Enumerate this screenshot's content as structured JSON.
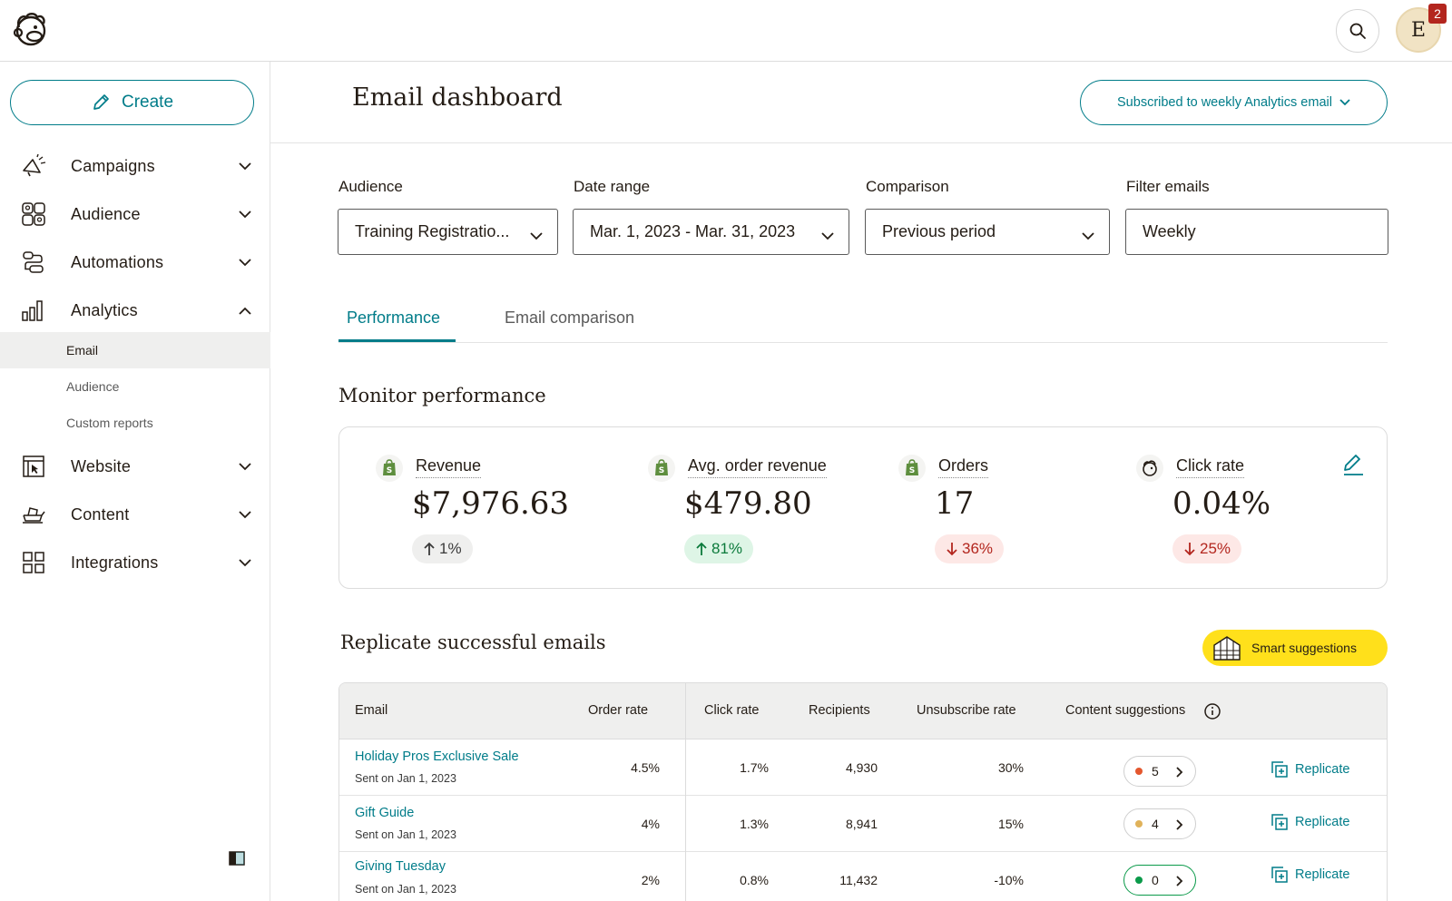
{
  "header": {
    "search_icon": "search-icon",
    "avatar_initial": "E",
    "notification_count": "2"
  },
  "sidebar": {
    "create_label": "Create",
    "items": [
      {
        "label": "Campaigns",
        "icon": "megaphone-icon",
        "expanded": false
      },
      {
        "label": "Audience",
        "icon": "people-icon",
        "expanded": false
      },
      {
        "label": "Automations",
        "icon": "workflow-icon",
        "expanded": false
      },
      {
        "label": "Analytics",
        "icon": "bar-chart-icon",
        "expanded": true
      },
      {
        "label": "Website",
        "icon": "website-icon",
        "expanded": false
      },
      {
        "label": "Content",
        "icon": "content-icon",
        "expanded": false
      },
      {
        "label": "Integrations",
        "icon": "grid-icon",
        "expanded": false
      }
    ],
    "analytics_subitems": [
      {
        "label": "Email",
        "active": true
      },
      {
        "label": "Audience",
        "active": false
      },
      {
        "label": "Custom reports",
        "active": false
      }
    ]
  },
  "main": {
    "title": "Email dashboard",
    "subscribe_label": "Subscribed to weekly Analytics email",
    "filters": {
      "audience": {
        "label": "Audience",
        "value": "Training Registratio..."
      },
      "date_range": {
        "label": "Date range",
        "value": "Mar. 1, 2023 - Mar. 31, 2023"
      },
      "comparison": {
        "label": "Comparison",
        "value": "Previous period"
      },
      "filter_emails": {
        "label": "Filter emails",
        "value": "Weekly"
      }
    },
    "tabs": [
      {
        "label": "Performance",
        "active": true
      },
      {
        "label": "Email comparison",
        "active": false
      }
    ],
    "monitor_title": "Monitor performance",
    "metrics": [
      {
        "label": "Revenue",
        "value": "$7,976.63",
        "change": "1%",
        "direction": "up",
        "tone": "neutral",
        "icon": "shopify-icon"
      },
      {
        "label": "Avg. order revenue",
        "value": "$479.80",
        "change": "81%",
        "direction": "up",
        "tone": "positive",
        "icon": "shopify-icon"
      },
      {
        "label": "Orders",
        "value": "17",
        "change": "36%",
        "direction": "down",
        "tone": "negative",
        "icon": "shopify-icon"
      },
      {
        "label": "Click rate",
        "value": "0.04%",
        "change": "25%",
        "direction": "down",
        "tone": "negative",
        "icon": "mailchimp-icon"
      }
    ],
    "replicate_title": "Replicate successful emails",
    "smart_suggestions_label": "Smart suggestions",
    "table": {
      "columns": [
        "Email",
        "Order rate",
        "Click rate",
        "Recipients",
        "Unsubscribe rate",
        "Content suggestions"
      ],
      "rows": [
        {
          "name": "Holiday Pros Exclusive Sale",
          "sent": "Sent on Jan 1, 2023",
          "order_rate": "4.5%",
          "click_rate": "1.7%",
          "recipients": "4,930",
          "unsubscribe_rate": "30%",
          "suggestions": "5",
          "dot_color": "#e4572e",
          "action": "Replicate"
        },
        {
          "name": "Gift Guide",
          "sent": "Sent on Jan 1, 2023",
          "order_rate": "4%",
          "click_rate": "1.3%",
          "recipients": "8,941",
          "unsubscribe_rate": "15%",
          "suggestions": "4",
          "dot_color": "#e0b25a",
          "action": "Replicate"
        },
        {
          "name": "Giving Tuesday",
          "sent": "Sent on Jan 1, 2023",
          "order_rate": "2%",
          "click_rate": "0.8%",
          "recipients": "11,432",
          "unsubscribe_rate": "-10%",
          "suggestions": "0",
          "dot_color": "#0b9a4a",
          "action": "Replicate"
        }
      ]
    }
  },
  "colors": {
    "accent": "#007c89",
    "yellow": "#ffe01b",
    "positive": "#0b7a3b",
    "negative": "#b3261e"
  }
}
